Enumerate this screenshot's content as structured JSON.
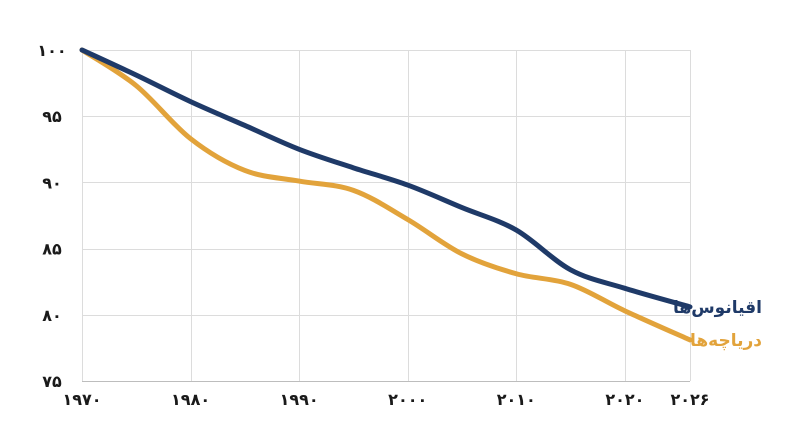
{
  "chart_data": {
    "type": "line",
    "title": "",
    "xlabel": "",
    "ylabel": "",
    "xlim": [
      1970,
      2026
    ],
    "ylim": [
      75,
      100
    ],
    "x_ticks": [
      1970,
      1980,
      1990,
      2000,
      2010,
      2020,
      2026
    ],
    "x_tick_labels": [
      "۱۹۷۰",
      "۱۹۸۰",
      "۱۹۹۰",
      "۲۰۰۰",
      "۲۰۱۰",
      "۲۰۲۰",
      "۲۰۲۶"
    ],
    "y_ticks": [
      75,
      80,
      85,
      90,
      95,
      100
    ],
    "y_tick_labels": [
      "۷۵",
      "۸۰",
      "۸۵",
      "۹۰",
      "۹۵",
      "۱۰۰"
    ],
    "grid": true,
    "series": [
      {
        "name": "اقیانوس‌ها",
        "color": "#1f3a68",
        "points": [
          [
            1970,
            100
          ],
          [
            1975,
            98.1
          ],
          [
            1980,
            96.1
          ],
          [
            1985,
            94.3
          ],
          [
            1990,
            92.5
          ],
          [
            1995,
            91.1
          ],
          [
            2000,
            89.8
          ],
          [
            2005,
            88.1
          ],
          [
            2010,
            86.4
          ],
          [
            2015,
            83.4
          ],
          [
            2020,
            82.0
          ],
          [
            2026,
            80.6
          ]
        ]
      },
      {
        "name": "دریاچه‌ها",
        "color": "#e2a33b",
        "points": [
          [
            1970,
            100
          ],
          [
            1975,
            97.3
          ],
          [
            1980,
            93.3
          ],
          [
            1985,
            90.9
          ],
          [
            1990,
            90.1
          ],
          [
            1995,
            89.4
          ],
          [
            2000,
            87.2
          ],
          [
            2005,
            84.6
          ],
          [
            2010,
            83.1
          ],
          [
            2015,
            82.3
          ],
          [
            2020,
            80.3
          ],
          [
            2026,
            78.1
          ]
        ]
      }
    ]
  }
}
